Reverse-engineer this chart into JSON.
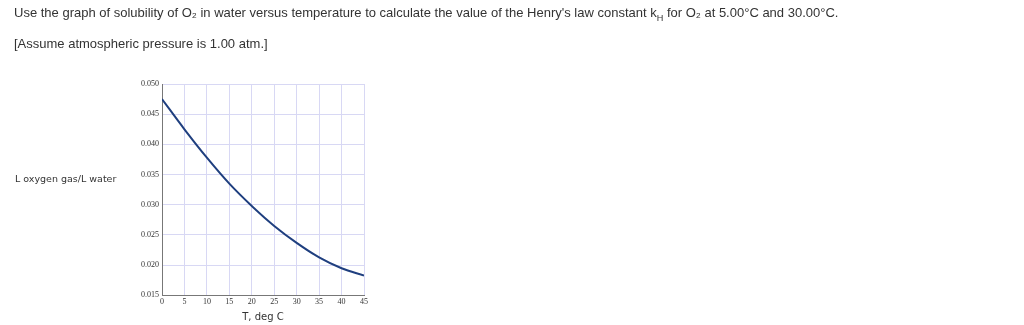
{
  "chart_data": {
    "type": "line",
    "title": "Use the graph of solubility of O₂ in water versus temperature to calculate the value of the Henry's law constant k$_{H}$ for O₂ at 5.00°C and 30.00°C.",
    "subtitle": "[Assume atmospheric pressure is 1.00 atm.]",
    "xlabel": "T, deg C",
    "ylabel": "L oxygen gas/L water",
    "series": [
      {
        "color": "#1f3f7f",
        "x": [
          0,
          5,
          10,
          15,
          20,
          25,
          30,
          35,
          40,
          45
        ],
        "values": [
          0.0475,
          0.0425,
          0.0378,
          0.0335,
          0.0298,
          0.0265,
          0.0237,
          0.0213,
          0.0195,
          0.0183
        ]
      }
    ],
    "xlim": [
      0,
      45
    ],
    "xticks": [
      0,
      5,
      10,
      15,
      20,
      25,
      30,
      35,
      40,
      45
    ],
    "ylim": [
      0.015,
      0.05
    ],
    "yticks": [
      {
        "value": 0.015,
        "label": "0.015"
      },
      {
        "value": 0.02,
        "label": "0.020"
      },
      {
        "value": 0.025,
        "label": "0.025"
      },
      {
        "value": 0.03,
        "label": "0.030"
      },
      {
        "value": 0.035,
        "label": "0.035"
      },
      {
        "value": 0.04,
        "label": "0.040"
      },
      {
        "value": 0.045,
        "label": "0.045"
      },
      {
        "value": 0.05,
        "label": "0.050"
      }
    ],
    "grid": true,
    "legend": false,
    "marker": "none",
    "line_style": "solid"
  }
}
